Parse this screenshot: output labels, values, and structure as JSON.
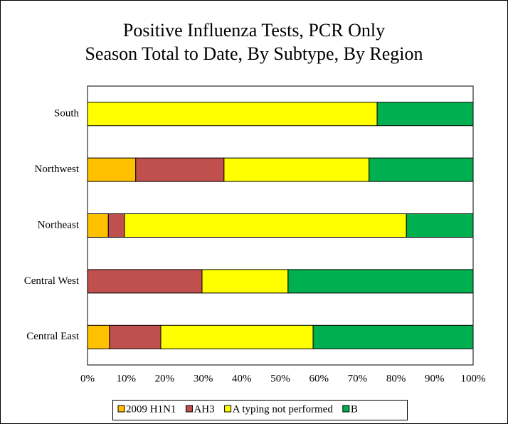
{
  "chart_data": {
    "type": "bar",
    "orientation": "horizontal",
    "stacked": true,
    "title": [
      "Positive Influenza Tests, PCR Only",
      "Season Total to Date, By Subtype, By Region"
    ],
    "categories": [
      "South",
      "Northwest",
      "Northeast",
      "Central West",
      "Central East"
    ],
    "series": [
      {
        "name": "2009 H1N1",
        "color": "#FFC000",
        "values": [
          0,
          12.5,
          5.4,
          0,
          5.7
        ]
      },
      {
        "name": "AH3",
        "color": "#C0504D",
        "values": [
          0,
          22.9,
          4.2,
          29.7,
          13.3
        ]
      },
      {
        "name": "A typing not performed",
        "color": "#FFFF00",
        "values": [
          75.1,
          37.6,
          73.1,
          22.3,
          39.5
        ]
      },
      {
        "name": "B",
        "color": "#00B050",
        "values": [
          24.9,
          27.0,
          17.3,
          48.0,
          41.5
        ]
      }
    ],
    "xlim": [
      0,
      100
    ],
    "xticks": [
      {
        "value": 0,
        "label": "0%"
      },
      {
        "value": 10,
        "label": "10%"
      },
      {
        "value": 20,
        "label": "20%"
      },
      {
        "value": 30,
        "label": "30%"
      },
      {
        "value": 40,
        "label": "40%"
      },
      {
        "value": 50,
        "label": "50%"
      },
      {
        "value": 60,
        "label": "60%"
      },
      {
        "value": 70,
        "label": "70%"
      },
      {
        "value": 80,
        "label": "80%"
      },
      {
        "value": 90,
        "label": "90%"
      },
      {
        "value": 100,
        "label": "100%"
      }
    ],
    "grid": false,
    "legend": "bottom"
  }
}
